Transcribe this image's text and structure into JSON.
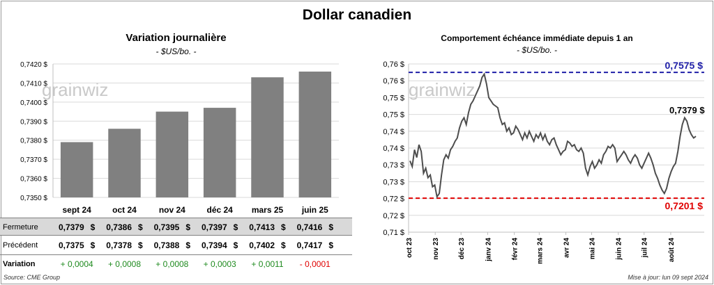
{
  "title": "Dollar canadien",
  "left_panel": {
    "title": "Variation  journalière",
    "subtitle": "- $US/bo. -",
    "watermark": "grainwiz",
    "table": {
      "rows": [
        {
          "label": "Fermeture",
          "values": [
            "0,7379",
            "0,7386",
            "0,7395",
            "0,7397",
            "0,7413",
            "0,7416"
          ]
        },
        {
          "label": "Précédent",
          "values": [
            "0,7375",
            "0,7378",
            "0,7388",
            "0,7394",
            "0,7402",
            "0,7417"
          ]
        },
        {
          "label": "Variation",
          "values": [
            "+ 0,0004",
            "+ 0,0008",
            "+ 0,0008",
            "+ 0,0003",
            "+ 0,0011",
            "- 0,0001"
          ]
        }
      ],
      "currency_symbol": "$",
      "positive_color": "#1e8a1e",
      "negative_color": "#e00000",
      "highlight_row_color": "#d9d9d9"
    }
  },
  "right_panel": {
    "title": "Comportement échéance immédiate depuis 1 an",
    "subtitle": "- $US/bo. -",
    "watermark": "grainwiz"
  },
  "footer": {
    "source": "Source: CME Group",
    "updated": "Mise à jour: lun 09 sept 2024"
  },
  "chart_data": [
    {
      "type": "bar",
      "categories": [
        "sept 24",
        "oct 24",
        "nov 24",
        "déc 24",
        "mars 25",
        "juin 25"
      ],
      "values": [
        0.7379,
        0.7386,
        0.7395,
        0.7397,
        0.7413,
        0.7416
      ],
      "ylim": [
        0.735,
        0.742
      ],
      "yticks": [
        "0,7350 $",
        "0,7360 $",
        "0,7370 $",
        "0,7380 $",
        "0,7390 $",
        "0,7400 $",
        "0,7410 $",
        "0,7420 $"
      ],
      "bar_color": "#808080",
      "grid": true
    },
    {
      "type": "line",
      "xlim": [
        "2023-10-01",
        "2024-09-09"
      ],
      "x_tick_labels": [
        "oct 23",
        "nov 23",
        "déc 23",
        "janv 24",
        "févr 24",
        "mars 24",
        "avr 24",
        "mai 24",
        "juin 24",
        "juil 24",
        "août 24"
      ],
      "ylim": [
        0.71,
        0.76
      ],
      "yticks": [
        "0,71 $",
        "0,72 $",
        "0,72 $",
        "0,73 $",
        "0,73 $",
        "0,74 $",
        "0,74 $",
        "0,75 $",
        "0,75 $",
        "0,76 $",
        "0,76 $"
      ],
      "line_color": "#4d4d4d",
      "values": [
        0.7312,
        0.7295,
        0.7345,
        0.7322,
        0.736,
        0.734,
        0.7275,
        0.729,
        0.7262,
        0.727,
        0.7235,
        0.724,
        0.7205,
        0.7215,
        0.727,
        0.7315,
        0.733,
        0.732,
        0.7345,
        0.7355,
        0.737,
        0.738,
        0.741,
        0.743,
        0.744,
        0.742,
        0.7455,
        0.748,
        0.749,
        0.7505,
        0.752,
        0.7535,
        0.756,
        0.757,
        0.754,
        0.75,
        0.749,
        0.748,
        0.7475,
        0.747,
        0.744,
        0.742,
        0.7425,
        0.74,
        0.741,
        0.739,
        0.7395,
        0.7415,
        0.7405,
        0.739,
        0.7375,
        0.7395,
        0.738,
        0.74,
        0.7385,
        0.737,
        0.739,
        0.738,
        0.7395,
        0.7375,
        0.739,
        0.737,
        0.736,
        0.7375,
        0.738,
        0.736,
        0.7345,
        0.733,
        0.734,
        0.7345,
        0.737,
        0.7365,
        0.7355,
        0.736,
        0.7345,
        0.734,
        0.735,
        0.7335,
        0.729,
        0.727,
        0.7295,
        0.731,
        0.729,
        0.73,
        0.7315,
        0.7305,
        0.733,
        0.734,
        0.7355,
        0.735,
        0.736,
        0.735,
        0.731,
        0.732,
        0.733,
        0.734,
        0.733,
        0.7315,
        0.7305,
        0.732,
        0.733,
        0.732,
        0.73,
        0.729,
        0.7305,
        0.732,
        0.7335,
        0.732,
        0.73,
        0.7275,
        0.726,
        0.724,
        0.7225,
        0.7215,
        0.723,
        0.726,
        0.728,
        0.7295,
        0.7305,
        0.734,
        0.7385,
        0.742,
        0.744,
        0.743,
        0.7405,
        0.739,
        0.738,
        0.7385
      ],
      "reference_lines": [
        {
          "value": 0.7575,
          "label": "0,7575 $",
          "color": "#1f1fa8"
        },
        {
          "value": 0.7201,
          "label": "0,7201 $",
          "color": "#e00000"
        }
      ],
      "last_label": "0,7379 $",
      "grid": true
    }
  ]
}
